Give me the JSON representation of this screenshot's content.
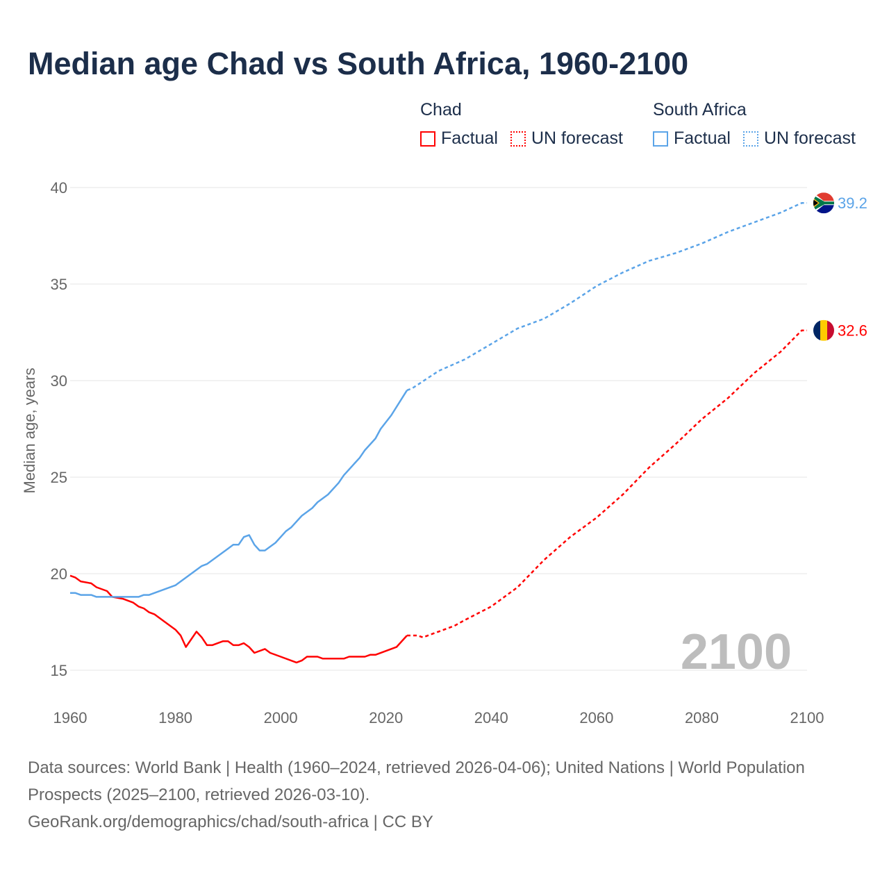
{
  "chart_data": {
    "type": "line",
    "title": "Median age Chad vs South Africa, 1960-2100",
    "ylabel": "Median age, years",
    "xlabel": "",
    "xlim": [
      1960,
      2100
    ],
    "ylim": [
      15,
      40
    ],
    "x_ticks": [
      "1960",
      "1980",
      "2000",
      "2020",
      "2040",
      "2060",
      "2080",
      "2100"
    ],
    "y_ticks": [
      "15",
      "20",
      "25",
      "30",
      "35",
      "40"
    ],
    "grid": true,
    "year_watermark": "2100",
    "legend": {
      "placement": "top-right",
      "groups": [
        {
          "name": "Chad",
          "items": [
            "Factual",
            "UN forecast"
          ]
        },
        {
          "name": "South Africa",
          "items": [
            "Factual",
            "UN forecast"
          ]
        }
      ]
    },
    "series": [
      {
        "name": "Chad",
        "color": "#ff0000",
        "end_label": "32.6",
        "factual": [
          [
            1960,
            19.9
          ],
          [
            1961,
            19.8
          ],
          [
            1962,
            19.6
          ],
          [
            1964,
            19.5
          ],
          [
            1965,
            19.3
          ],
          [
            1967,
            19.1
          ],
          [
            1968,
            18.8
          ],
          [
            1970,
            18.7
          ],
          [
            1972,
            18.5
          ],
          [
            1973,
            18.3
          ],
          [
            1974,
            18.2
          ],
          [
            1975,
            18.0
          ],
          [
            1976,
            17.9
          ],
          [
            1978,
            17.5
          ],
          [
            1980,
            17.1
          ],
          [
            1981,
            16.8
          ],
          [
            1982,
            16.2
          ],
          [
            1983,
            16.6
          ],
          [
            1984,
            17.0
          ],
          [
            1985,
            16.7
          ],
          [
            1986,
            16.3
          ],
          [
            1987,
            16.3
          ],
          [
            1989,
            16.5
          ],
          [
            1990,
            16.5
          ],
          [
            1991,
            16.3
          ],
          [
            1992,
            16.3
          ],
          [
            1993,
            16.4
          ],
          [
            1994,
            16.2
          ],
          [
            1995,
            15.9
          ],
          [
            1997,
            16.1
          ],
          [
            1998,
            15.9
          ],
          [
            2000,
            15.7
          ],
          [
            2003,
            15.4
          ],
          [
            2004,
            15.5
          ],
          [
            2005,
            15.7
          ],
          [
            2007,
            15.7
          ],
          [
            2008,
            15.6
          ],
          [
            2012,
            15.6
          ],
          [
            2013,
            15.7
          ],
          [
            2016,
            15.7
          ],
          [
            2017,
            15.8
          ],
          [
            2018,
            15.8
          ],
          [
            2022,
            16.2
          ],
          [
            2024,
            16.8
          ]
        ],
        "forecast": [
          [
            2024,
            16.8
          ],
          [
            2026,
            16.8
          ],
          [
            2027,
            16.7
          ],
          [
            2030,
            17.0
          ],
          [
            2033,
            17.3
          ],
          [
            2035,
            17.6
          ],
          [
            2040,
            18.3
          ],
          [
            2045,
            19.3
          ],
          [
            2050,
            20.7
          ],
          [
            2055,
            21.9
          ],
          [
            2060,
            22.9
          ],
          [
            2065,
            24.1
          ],
          [
            2070,
            25.5
          ],
          [
            2075,
            26.7
          ],
          [
            2080,
            28.0
          ],
          [
            2085,
            29.1
          ],
          [
            2090,
            30.4
          ],
          [
            2095,
            31.5
          ],
          [
            2099,
            32.6
          ],
          [
            2100,
            32.6
          ]
        ]
      },
      {
        "name": "South Africa",
        "color": "#5ba4e8",
        "end_label": "39.2",
        "factual": [
          [
            1960,
            19.0
          ],
          [
            1961,
            19.0
          ],
          [
            1962,
            18.9
          ],
          [
            1964,
            18.9
          ],
          [
            1965,
            18.8
          ],
          [
            1968,
            18.8
          ],
          [
            1973,
            18.8
          ],
          [
            1974,
            18.9
          ],
          [
            1975,
            18.9
          ],
          [
            1980,
            19.4
          ],
          [
            1985,
            20.4
          ],
          [
            1986,
            20.5
          ],
          [
            1990,
            21.3
          ],
          [
            1991,
            21.5
          ],
          [
            1992,
            21.5
          ],
          [
            1993,
            21.9
          ],
          [
            1994,
            22.0
          ],
          [
            1995,
            21.5
          ],
          [
            1996,
            21.2
          ],
          [
            1997,
            21.2
          ],
          [
            1999,
            21.6
          ],
          [
            2001,
            22.2
          ],
          [
            2002,
            22.4
          ],
          [
            2004,
            23.0
          ],
          [
            2006,
            23.4
          ],
          [
            2007,
            23.7
          ],
          [
            2009,
            24.1
          ],
          [
            2011,
            24.7
          ],
          [
            2012,
            25.1
          ],
          [
            2014,
            25.7
          ],
          [
            2015,
            26.0
          ],
          [
            2016,
            26.4
          ],
          [
            2018,
            27.0
          ],
          [
            2019,
            27.5
          ],
          [
            2021,
            28.2
          ],
          [
            2024,
            29.5
          ]
        ],
        "forecast": [
          [
            2024,
            29.5
          ],
          [
            2025,
            29.6
          ],
          [
            2030,
            30.5
          ],
          [
            2035,
            31.1
          ],
          [
            2040,
            31.9
          ],
          [
            2045,
            32.7
          ],
          [
            2050,
            33.2
          ],
          [
            2055,
            34.0
          ],
          [
            2060,
            34.9
          ],
          [
            2065,
            35.6
          ],
          [
            2070,
            36.2
          ],
          [
            2075,
            36.6
          ],
          [
            2080,
            37.1
          ],
          [
            2085,
            37.7
          ],
          [
            2090,
            38.2
          ],
          [
            2095,
            38.7
          ],
          [
            2099,
            39.2
          ],
          [
            2100,
            39.2
          ]
        ]
      }
    ]
  },
  "footer": {
    "line1": "Data sources: World Bank | Health (1960–2024, retrieved 2026-04-06); United Nations | World Population Prospects (2025–2100, retrieved 2026-03-10).",
    "line2": "GeoRank.org/demographics/chad/south-africa | CC BY"
  }
}
